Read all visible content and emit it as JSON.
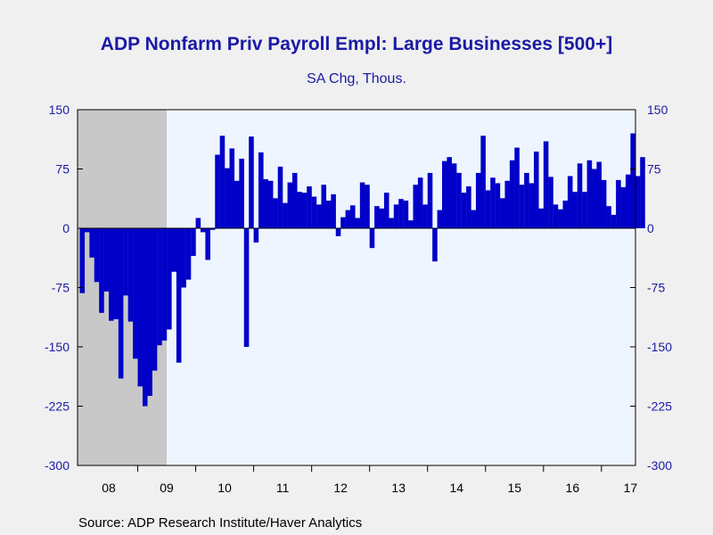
{
  "header": {
    "title": "ADP Nonfarm Priv Payroll Empl: Large Businesses [500+]",
    "subtitle": "SA Chg, Thous."
  },
  "footer": {
    "source": "Source:  ADP Research Institute/Haver Analytics"
  },
  "colors": {
    "bar": "#0000c8",
    "recession": "#c8c8c8",
    "plot_bg": "#eef5ff",
    "axis": "#1a1aa6"
  },
  "chart_data": {
    "type": "bar",
    "ylim": [
      -300,
      150
    ],
    "yticks": [
      150,
      75,
      0,
      -75,
      -150,
      -225,
      -300
    ],
    "ytick_labels": [
      "150",
      "75",
      "0",
      "-75",
      "-150",
      "-225",
      "-300"
    ],
    "xtick_labels": [
      "08",
      "09",
      "10",
      "11",
      "12",
      "13",
      "14",
      "15",
      "16",
      "17"
    ],
    "start": "2008-01",
    "recession": {
      "start": "2008-01",
      "end": "2009-06"
    },
    "grid": false,
    "legend": "none",
    "values": [
      -82,
      -5,
      -37,
      -68,
      -107,
      -80,
      -117,
      -115,
      -190,
      -85,
      -118,
      -165,
      -200,
      -225,
      -212,
      -180,
      -148,
      -142,
      -128,
      -55,
      -170,
      -75,
      -65,
      -35,
      13,
      -5,
      -40,
      -2,
      93,
      117,
      76,
      101,
      60,
      88,
      -150,
      116,
      -18,
      96,
      62,
      60,
      38,
      78,
      32,
      58,
      70,
      46,
      45,
      53,
      40,
      30,
      55,
      35,
      43,
      -10,
      14,
      23,
      29,
      13,
      58,
      55,
      -25,
      28,
      25,
      45,
      13,
      30,
      37,
      35,
      10,
      55,
      64,
      30,
      70,
      -42,
      23,
      85,
      90,
      82,
      70,
      45,
      53,
      23,
      70,
      117,
      48,
      64,
      57,
      38,
      60,
      86,
      102,
      55,
      70,
      57,
      97,
      25,
      110,
      65,
      30,
      24,
      35,
      66,
      46,
      82,
      46,
      86,
      75,
      84,
      61,
      28,
      17,
      61,
      52,
      68,
      120,
      66,
      90
    ]
  }
}
